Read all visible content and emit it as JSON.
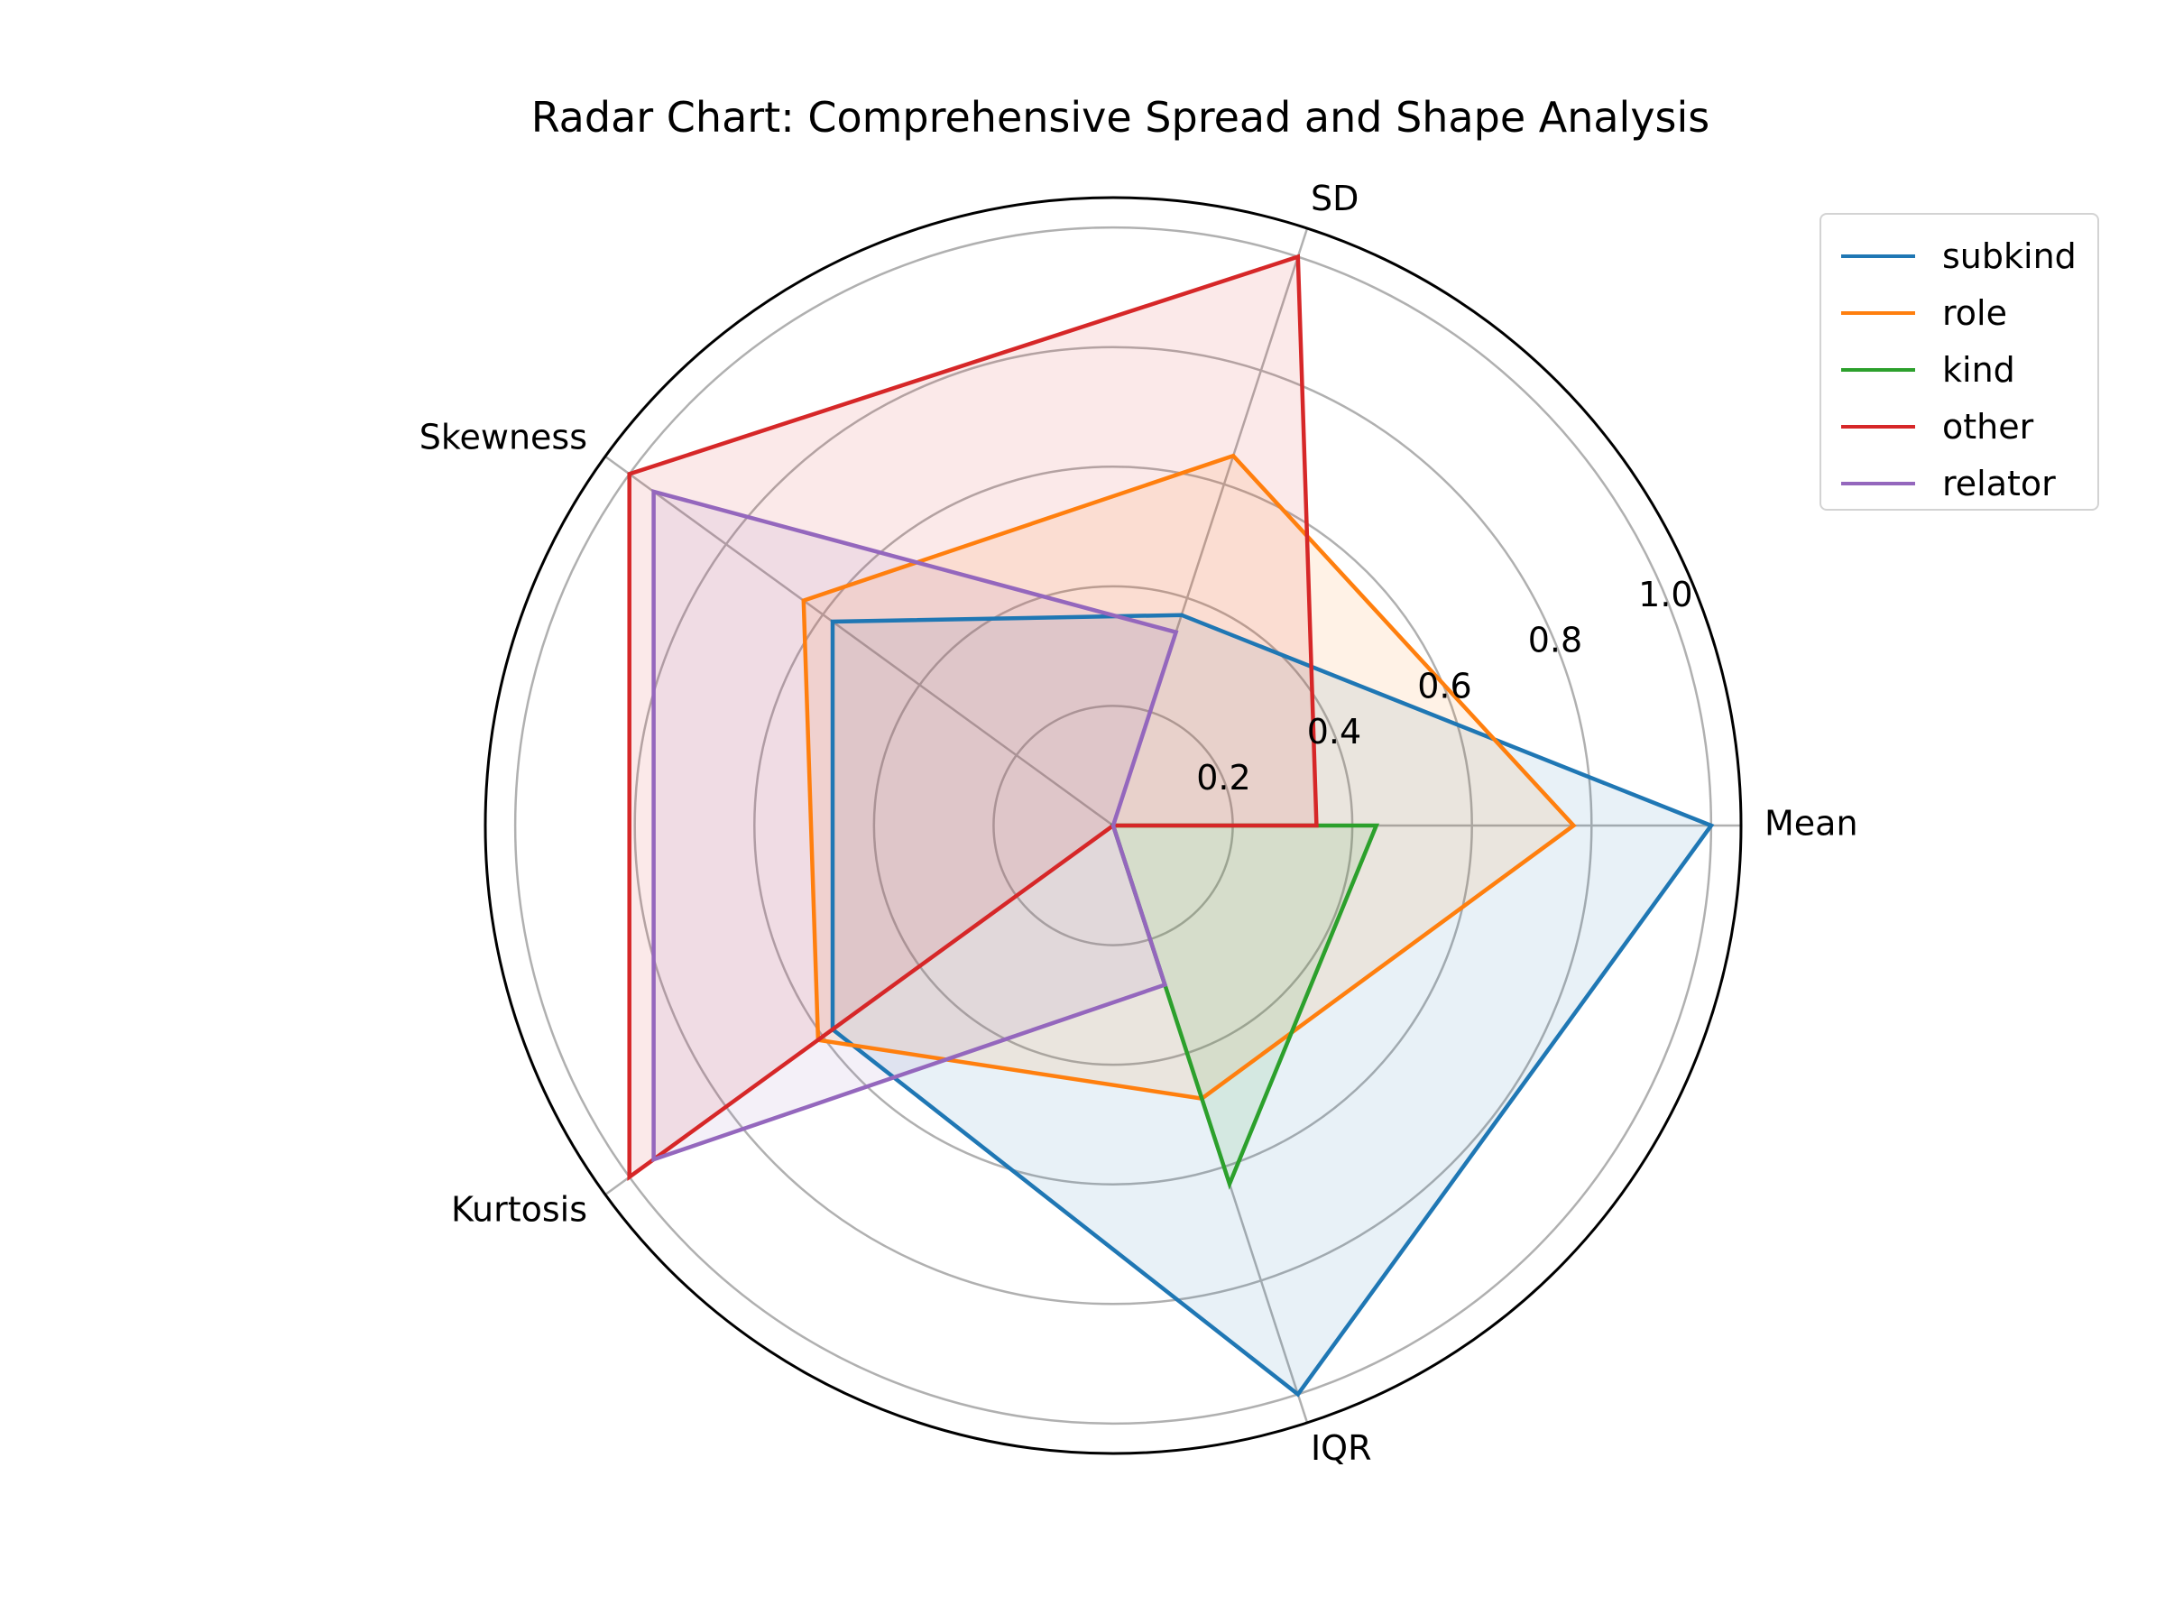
{
  "chart_data": {
    "type": "radar",
    "title": "Radar Chart: Comprehensive Spread and Shape Analysis",
    "axes": [
      "Mean",
      "SD",
      "Skewness",
      "Kurtosis",
      "IQR"
    ],
    "rlim": [
      0,
      1.05
    ],
    "rticks": [
      0.2,
      0.4,
      0.6,
      0.8,
      1.0
    ],
    "rtick_labels": [
      "0.2",
      "0.4",
      "0.6",
      "0.8",
      "1.0"
    ],
    "grid": true,
    "legend_position": "upper-right outside",
    "series": [
      {
        "name": "subkind",
        "color": "#1f77b4",
        "values": [
          1.0,
          0.37,
          0.58,
          0.58,
          1.0
        ],
        "fill_opacity": 0.1
      },
      {
        "name": "role",
        "color": "#ff7f0e",
        "values": [
          0.77,
          0.65,
          0.64,
          0.61,
          0.48
        ],
        "fill_opacity": 0.1
      },
      {
        "name": "kind",
        "color": "#2ca02c",
        "values": [
          0.44,
          0.0,
          0.0,
          0.0,
          0.63
        ],
        "fill_opacity": 0.1
      },
      {
        "name": "other",
        "color": "#d62728",
        "values": [
          0.34,
          1.0,
          1.0,
          1.0,
          0.0
        ],
        "fill_opacity": 0.1
      },
      {
        "name": "relator",
        "color": "#9467bd",
        "values": [
          0.0,
          0.34,
          0.95,
          0.95,
          0.28
        ],
        "fill_opacity": 0.1
      }
    ]
  }
}
